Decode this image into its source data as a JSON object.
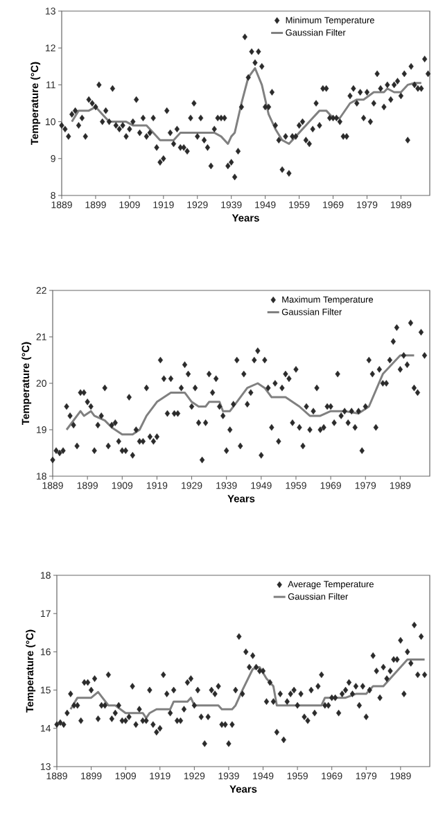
{
  "chart_data": [
    {
      "type": "scatter",
      "xlabel": "Years",
      "ylabel": "Temperature (°C)",
      "legend": "top right",
      "xlim": [
        1889,
        1997.5
      ],
      "ylim": [
        8,
        13
      ],
      "xticks": [
        1889,
        1899,
        1909,
        1919,
        1929,
        1939,
        1949,
        1959,
        1969,
        1979,
        1989
      ],
      "yticks": [
        8,
        9,
        10,
        11,
        12,
        13
      ],
      "series": [
        {
          "name": "Minimum Temperature",
          "marker": "diamond",
          "color": "#2b2b2b",
          "x": [
            1889,
            1890,
            1891,
            1892,
            1893,
            1894,
            1895,
            1896,
            1897,
            1898,
            1899,
            1900,
            1901,
            1902,
            1903,
            1904,
            1905,
            1906,
            1907,
            1908,
            1909,
            1910,
            1911,
            1912,
            1913,
            1914,
            1915,
            1916,
            1917,
            1918,
            1919,
            1920,
            1921,
            1922,
            1923,
            1924,
            1925,
            1926,
            1927,
            1928,
            1929,
            1930,
            1931,
            1932,
            1933,
            1934,
            1935,
            1936,
            1937,
            1938,
            1939,
            1940,
            1941,
            1942,
            1943,
            1944,
            1945,
            1946,
            1947,
            1948,
            1949,
            1950,
            1951,
            1952,
            1953,
            1954,
            1955,
            1956,
            1957,
            1958,
            1959,
            1960,
            1961,
            1962,
            1963,
            1964,
            1965,
            1966,
            1967,
            1968,
            1969,
            1970,
            1971,
            1972,
            1973,
            1974,
            1975,
            1976,
            1977,
            1978,
            1979,
            1980,
            1981,
            1982,
            1983,
            1984,
            1985,
            1986,
            1987,
            1988,
            1989,
            1990,
            1991,
            1992,
            1993,
            1994,
            1995,
            1996,
            1997
          ],
          "values": [
            9.9,
            9.8,
            9.6,
            10.2,
            10.3,
            9.9,
            10.1,
            9.6,
            10.6,
            10.5,
            10.4,
            11.0,
            10.0,
            10.3,
            10.0,
            10.9,
            9.9,
            9.8,
            9.9,
            9.6,
            9.8,
            10.0,
            10.6,
            9.7,
            10.1,
            9.6,
            9.7,
            10.1,
            9.3,
            8.9,
            9.0,
            10.3,
            9.7,
            9.4,
            9.8,
            9.3,
            9.3,
            9.2,
            10.1,
            10.5,
            9.6,
            10.1,
            9.5,
            9.3,
            8.8,
            9.8,
            10.1,
            10.1,
            10.1,
            8.8,
            8.9,
            8.5,
            9.2,
            10.4,
            12.3,
            11.2,
            11.9,
            11.6,
            11.9,
            11.5,
            10.4,
            10.4,
            10.8,
            9.9,
            9.5,
            8.7,
            9.6,
            8.6,
            9.6,
            9.6,
            9.9,
            10.0,
            9.5,
            9.4,
            9.8,
            10.5,
            9.9,
            10.9,
            10.9,
            10.1,
            10.1,
            10.1,
            10.0,
            9.6,
            9.6,
            10.7,
            10.9,
            10.5,
            10.8,
            10.1,
            10.8,
            10.0,
            10.5,
            11.3,
            10.9,
            10.4,
            11.0,
            10.6,
            11.0,
            11.1,
            10.7,
            11.3,
            9.5,
            11.5,
            11.0,
            10.9,
            10.9,
            11.7,
            11.3
          ]
        },
        {
          "name": "Gaussian Filter",
          "type": "line",
          "marker": "none",
          "color": "#808080",
          "x": [
            1892,
            1894,
            1897,
            1899,
            1901,
            1903,
            1908,
            1910,
            1914,
            1916,
            1918,
            1922,
            1924,
            1934,
            1936,
            1938,
            1939,
            1940,
            1942,
            1944,
            1946,
            1948,
            1950,
            1952,
            1954,
            1956,
            1958,
            1962,
            1965,
            1967,
            1969,
            1971,
            1974,
            1976,
            1978,
            1981,
            1984,
            1985,
            1987,
            1989,
            1991,
            1993,
            1995
          ],
          "values": [
            10.0,
            10.3,
            10.3,
            10.4,
            10.2,
            10.0,
            10.0,
            9.9,
            9.9,
            9.7,
            9.5,
            9.5,
            9.7,
            9.7,
            9.6,
            9.4,
            9.6,
            9.7,
            10.5,
            11.2,
            11.45,
            11.0,
            10.2,
            9.8,
            9.5,
            9.4,
            9.6,
            10.0,
            10.3,
            10.3,
            10.1,
            10.1,
            10.5,
            10.6,
            10.6,
            10.8,
            10.8,
            10.9,
            10.8,
            10.8,
            11.0,
            11.05,
            11.05
          ]
        }
      ]
    },
    {
      "type": "scatter",
      "xlabel": "Years",
      "ylabel": "Temperature (°C)",
      "legend": "top right",
      "xlim": [
        1889,
        1997.5
      ],
      "ylim": [
        18,
        22
      ],
      "xticks": [
        1889,
        1899,
        1909,
        1919,
        1929,
        1939,
        1949,
        1959,
        1969,
        1979,
        1989
      ],
      "yticks": [
        18,
        19,
        20,
        21,
        22
      ],
      "series": [
        {
          "name": "Maximum Temperature",
          "marker": "diamond",
          "color": "#2b2b2b",
          "x": [
            1889,
            1890,
            1891,
            1892,
            1893,
            1894,
            1895,
            1896,
            1897,
            1898,
            1899,
            1900,
            1901,
            1902,
            1903,
            1904,
            1905,
            1906,
            1907,
            1908,
            1909,
            1910,
            1911,
            1912,
            1913,
            1914,
            1915,
            1916,
            1917,
            1918,
            1919,
            1920,
            1921,
            1922,
            1923,
            1924,
            1925,
            1926,
            1927,
            1928,
            1929,
            1930,
            1931,
            1932,
            1933,
            1934,
            1935,
            1936,
            1937,
            1938,
            1939,
            1940,
            1941,
            1942,
            1943,
            1944,
            1945,
            1946,
            1947,
            1948,
            1949,
            1950,
            1951,
            1952,
            1953,
            1954,
            1955,
            1956,
            1957,
            1958,
            1959,
            1960,
            1961,
            1962,
            1963,
            1964,
            1965,
            1966,
            1967,
            1968,
            1969,
            1970,
            1971,
            1972,
            1973,
            1974,
            1975,
            1976,
            1977,
            1978,
            1979,
            1980,
            1981,
            1982,
            1983,
            1984,
            1985,
            1986,
            1987,
            1988,
            1989,
            1990,
            1991,
            1992,
            1993,
            1994,
            1995,
            1996
          ],
          "values": [
            18.35,
            18.55,
            18.5,
            18.55,
            19.5,
            19.3,
            19.1,
            18.65,
            19.8,
            19.8,
            19.6,
            19.5,
            18.55,
            19.1,
            19.3,
            19.9,
            18.65,
            19.1,
            19.15,
            18.75,
            18.55,
            18.55,
            19.7,
            18.45,
            19.0,
            18.75,
            18.75,
            19.9,
            18.85,
            18.75,
            18.85,
            20.5,
            20.1,
            19.35,
            20.1,
            19.35,
            19.35,
            19.9,
            20.4,
            20.2,
            19.5,
            19.9,
            19.15,
            18.35,
            19.15,
            20.2,
            19.8,
            20.1,
            19.5,
            19.3,
            18.55,
            19.0,
            19.55,
            20.5,
            18.65,
            20.2,
            19.55,
            19.8,
            20.5,
            20.7,
            18.45,
            20.5,
            19.9,
            19.05,
            20.0,
            18.75,
            19.9,
            20.2,
            20.1,
            19.15,
            20.3,
            19.05,
            18.65,
            19.5,
            19.0,
            19.4,
            19.9,
            19.0,
            19.05,
            19.5,
            19.5,
            19.15,
            20.2,
            19.3,
            19.4,
            19.15,
            19.4,
            19.05,
            19.4,
            18.55,
            19.5,
            20.5,
            20.2,
            19.05,
            20.3,
            20.0,
            20.0,
            20.5,
            20.9,
            21.2,
            20.3,
            20.6,
            20.4,
            21.3,
            19.9,
            19.8,
            21.1,
            20.6
          ]
        },
        {
          "name": "Gaussian Filter",
          "type": "line",
          "marker": "none",
          "color": "#808080",
          "x": [
            1893,
            1897,
            1898,
            1900,
            1901,
            1904,
            1906,
            1909,
            1912,
            1914,
            1916,
            1919,
            1923,
            1927,
            1929,
            1931,
            1933,
            1934,
            1937,
            1938,
            1940,
            1942,
            1945,
            1948,
            1950,
            1952,
            1956,
            1960,
            1963,
            1966,
            1969,
            1973,
            1977,
            1980,
            1984,
            1989,
            1993
          ],
          "values": [
            19.0,
            19.4,
            19.3,
            19.4,
            19.3,
            19.2,
            19.05,
            18.9,
            18.9,
            19.0,
            19.3,
            19.6,
            19.8,
            19.8,
            19.6,
            19.5,
            19.5,
            19.6,
            19.6,
            19.4,
            19.4,
            19.6,
            19.9,
            20.0,
            19.9,
            19.7,
            19.7,
            19.5,
            19.3,
            19.3,
            19.4,
            19.4,
            19.35,
            19.5,
            20.2,
            20.6,
            20.6
          ]
        }
      ]
    },
    {
      "type": "scatter",
      "xlabel": "Years",
      "ylabel": "Temperature (°C)",
      "legend": "top right",
      "xlim": [
        1889,
        1997.5
      ],
      "ylim": [
        13,
        18
      ],
      "xticks": [
        1889,
        1899,
        1909,
        1919,
        1929,
        1939,
        1949,
        1959,
        1969,
        1979,
        1989
      ],
      "yticks": [
        13,
        14,
        15,
        16,
        17,
        18
      ],
      "series": [
        {
          "name": "Average Temperature",
          "marker": "diamond",
          "color": "#2b2b2b",
          "x": [
            1889,
            1890,
            1891,
            1892,
            1893,
            1894,
            1895,
            1896,
            1897,
            1898,
            1899,
            1900,
            1901,
            1902,
            1903,
            1904,
            1905,
            1906,
            1907,
            1908,
            1909,
            1910,
            1911,
            1912,
            1913,
            1914,
            1915,
            1916,
            1917,
            1918,
            1919,
            1920,
            1921,
            1922,
            1923,
            1924,
            1925,
            1926,
            1927,
            1928,
            1929,
            1930,
            1931,
            1932,
            1933,
            1934,
            1935,
            1936,
            1937,
            1938,
            1939,
            1940,
            1941,
            1942,
            1943,
            1944,
            1945,
            1946,
            1947,
            1948,
            1949,
            1950,
            1951,
            1952,
            1953,
            1954,
            1955,
            1956,
            1957,
            1958,
            1959,
            1960,
            1961,
            1962,
            1963,
            1964,
            1965,
            1966,
            1967,
            1968,
            1969,
            1970,
            1971,
            1972,
            1973,
            1974,
            1975,
            1976,
            1977,
            1978,
            1979,
            1980,
            1981,
            1982,
            1983,
            1984,
            1985,
            1986,
            1987,
            1988,
            1989,
            1990,
            1991,
            1992,
            1993,
            1994,
            1995,
            1996
          ],
          "values": [
            14.1,
            14.15,
            14.1,
            14.4,
            14.9,
            14.6,
            14.6,
            14.2,
            15.2,
            15.2,
            15.0,
            15.3,
            14.25,
            14.6,
            14.6,
            15.4,
            14.25,
            14.4,
            14.6,
            14.2,
            14.2,
            14.3,
            15.1,
            14.1,
            14.5,
            14.2,
            14.2,
            15.0,
            14.1,
            13.9,
            14.0,
            15.4,
            14.9,
            14.4,
            15.0,
            14.2,
            14.2,
            14.5,
            15.2,
            15.3,
            14.6,
            15.0,
            14.3,
            13.6,
            14.3,
            15.0,
            14.9,
            15.1,
            14.1,
            14.1,
            13.6,
            14.1,
            15.0,
            16.4,
            14.9,
            16.0,
            15.6,
            15.9,
            15.6,
            15.5,
            15.5,
            14.7,
            15.2,
            14.7,
            13.9,
            14.9,
            13.7,
            14.7,
            14.9,
            15.0,
            14.6,
            14.9,
            14.3,
            14.2,
            15.0,
            14.4,
            15.1,
            15.4,
            14.6,
            14.6,
            14.8,
            14.8,
            14.4,
            14.9,
            15.0,
            15.2,
            14.9,
            15.1,
            14.6,
            15.1,
            14.3,
            15.0,
            15.9,
            15.5,
            14.8,
            15.6,
            15.3,
            15.5,
            15.8,
            15.8,
            16.3,
            14.9,
            16.0,
            15.7,
            16.7,
            15.4,
            16.4,
            15.4
          ]
        },
        {
          "name": "Gaussian Filter",
          "type": "line",
          "marker": "none",
          "color": "#808080",
          "x": [
            1893,
            1895,
            1899,
            1901,
            1904,
            1906,
            1909,
            1914,
            1915,
            1916,
            1918,
            1922,
            1923,
            1927,
            1928,
            1929,
            1936,
            1937,
            1940,
            1941,
            1943,
            1946,
            1948,
            1950,
            1952,
            1953,
            1966,
            1967,
            1973,
            1976,
            1979,
            1981,
            1984,
            1988,
            1991,
            1996
          ],
          "values": [
            14.5,
            14.8,
            14.8,
            14.95,
            14.6,
            14.6,
            14.4,
            14.4,
            14.27,
            14.4,
            14.5,
            14.5,
            14.7,
            14.7,
            14.8,
            14.6,
            14.6,
            14.5,
            14.5,
            14.6,
            15.0,
            15.55,
            15.6,
            15.3,
            15.1,
            14.6,
            14.6,
            14.8,
            14.8,
            14.9,
            14.9,
            15.1,
            15.1,
            15.5,
            15.8,
            15.8
          ]
        }
      ]
    }
  ]
}
